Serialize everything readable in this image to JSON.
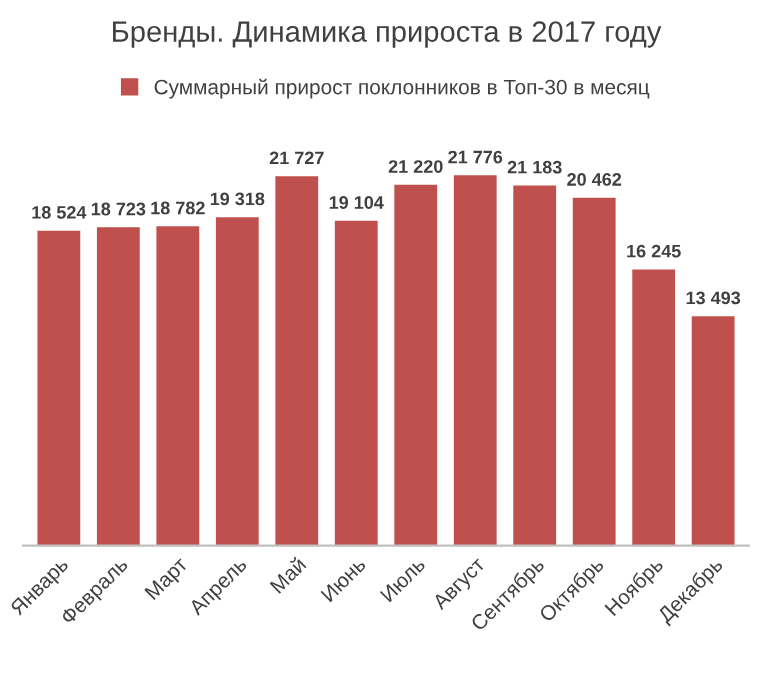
{
  "chart_data": {
    "type": "bar",
    "title": "Бренды. Динамика прироста в 2017 году",
    "categories": [
      "Январь",
      "Февраль",
      "Март",
      "Апрель",
      "Май",
      "Июнь",
      "Июль",
      "Август",
      "Сентябрь",
      "Октябрь",
      "Ноябрь",
      "Декабрь"
    ],
    "series": [
      {
        "name": "Суммарный прирост поклонников в Топ-30 в месяц",
        "color": "#c0504d",
        "values": [
          18524,
          18723,
          18782,
          19318,
          21727,
          19104,
          21220,
          21776,
          21183,
          20462,
          16245,
          13493
        ],
        "value_labels": [
          "18 524",
          "18 723",
          "18 782",
          "19 318",
          "21 727",
          "19 104",
          "21 220",
          "21 776",
          "21 183",
          "20 462",
          "16 245",
          "13 493"
        ]
      }
    ],
    "legend": "top",
    "grid": false
  }
}
